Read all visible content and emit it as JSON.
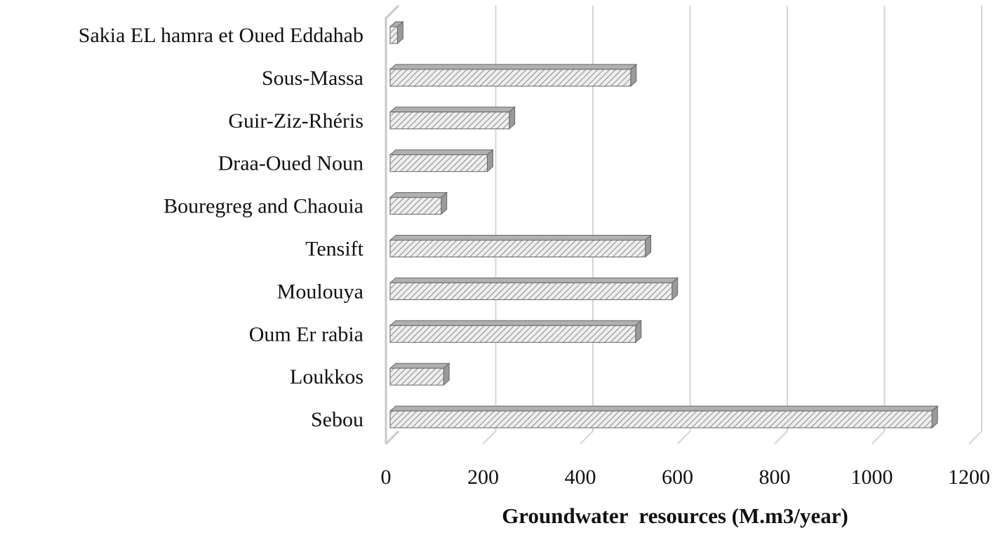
{
  "chart_data": {
    "type": "bar",
    "orientation": "horizontal",
    "style": "3d-hatched",
    "categories": [
      "Sakia EL hamra et Oued Eddahab",
      "Sous-Massa",
      "Guir-Ziz-Rhéris",
      "Draa-Oued Noun",
      "Bouregreg and Chaouia",
      "Tensift",
      "Moulouya ",
      "Oum Er rabia",
      "Loukkos",
      "Sebou"
    ],
    "values": [
      15,
      495,
      245,
      200,
      105,
      525,
      580,
      505,
      110,
      1115
    ],
    "xlabel": "Groundwater  resources (M.m3/year)",
    "ylabel": "",
    "title": "",
    "xlim": [
      0,
      1200
    ],
    "xticks": [
      "0",
      "200",
      "400",
      "600",
      "800",
      "1000",
      "1200"
    ],
    "grid": true,
    "legend": "none",
    "colors": {
      "bar_face": "#eeeeee",
      "bar_hatch": "#8a8a8a",
      "bar_side": "#9a9a9a",
      "bar_top": "#b0b0b0",
      "bar_outline": "#666666",
      "gridline": "#d4d4d4",
      "axis_wall": "#c8c8c8"
    }
  }
}
